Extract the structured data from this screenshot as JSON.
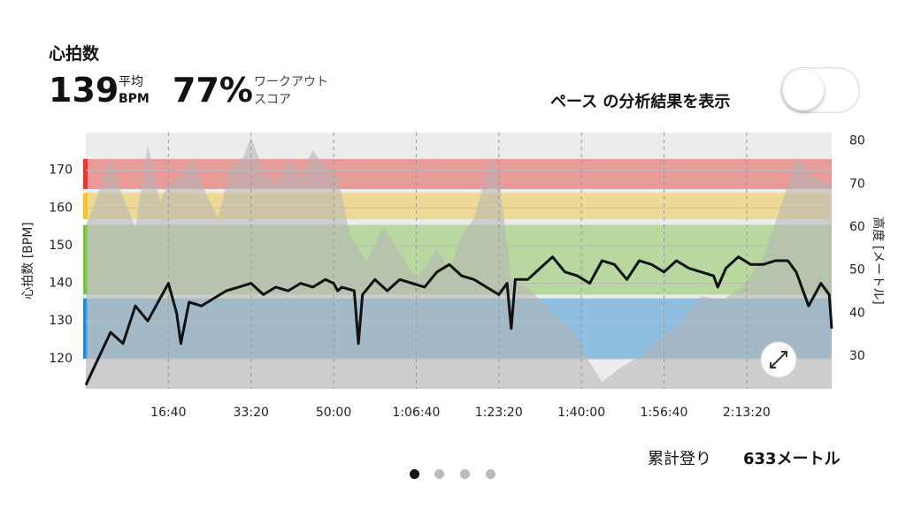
{
  "header": {
    "title": "心拍数",
    "avg_value": "139",
    "avg_label": "平均",
    "avg_unit": "BPM",
    "score_value": "77%",
    "score_label_1": "ワークアウト",
    "score_label_2": "スコア",
    "toggle_label": "ペース の分析結果を表示"
  },
  "chart_data": {
    "type": "line",
    "ylabel": "心拍数 [BPM]",
    "y2label": "高度 [メートル]",
    "xlim": [
      0,
      9030
    ],
    "ylim": [
      112,
      180
    ],
    "y2lim": [
      22.4,
      82
    ],
    "xticks": [
      {
        "value": 1000,
        "label": "16:40"
      },
      {
        "value": 2000,
        "label": "33:20"
      },
      {
        "value": 3000,
        "label": "50:00"
      },
      {
        "value": 4000,
        "label": "1:06:40"
      },
      {
        "value": 5000,
        "label": "1:23:20"
      },
      {
        "value": 6000,
        "label": "1:40:00"
      },
      {
        "value": 7000,
        "label": "1:56:40"
      },
      {
        "value": 8000,
        "label": "2:13:20"
      }
    ],
    "yticks": [
      120,
      130,
      140,
      150,
      160,
      170
    ],
    "y2ticks": [
      30,
      40,
      50,
      60,
      70,
      80
    ],
    "grid": true,
    "zones": [
      {
        "from": 165,
        "to": 173,
        "color": "#e53935"
      },
      {
        "from": 157,
        "to": 164,
        "color": "#f4c430"
      },
      {
        "from": 137,
        "to": 155.5,
        "color": "#7cc242"
      },
      {
        "from": 120,
        "to": 136,
        "color": "#1e88d2"
      }
    ],
    "series": [
      {
        "color": "#111111",
        "axis": "y",
        "x": [
          0,
          150,
          300,
          450,
          600,
          750,
          900,
          1000,
          1100,
          1150,
          1250,
          1400,
          1550,
          1700,
          1850,
          2000,
          2150,
          2300,
          2450,
          2600,
          2750,
          2900,
          3000,
          3050,
          3100,
          3250,
          3300,
          3350,
          3500,
          3650,
          3800,
          3950,
          4100,
          4250,
          4400,
          4550,
          4700,
          4850,
          5000,
          5100,
          5150,
          5200,
          5350,
          5500,
          5650,
          5800,
          5950,
          6100,
          6250,
          6400,
          6550,
          6700,
          6850,
          7000,
          7150,
          7300,
          7450,
          7600,
          7650,
          7750,
          7900,
          8050,
          8200,
          8350,
          8500,
          8600,
          8750,
          8900,
          9000,
          9030
        ],
        "values": [
          113,
          120,
          127,
          124,
          134,
          130,
          136,
          140,
          132,
          124,
          135,
          134,
          136,
          138,
          139,
          140,
          137,
          139,
          138,
          140,
          139,
          141,
          140,
          138,
          139,
          138,
          124,
          137,
          141,
          138,
          141,
          140,
          139,
          143,
          145,
          142,
          141,
          139,
          137,
          140,
          128,
          141,
          141,
          144,
          147,
          143,
          142,
          140,
          146,
          145,
          141,
          146,
          145,
          143,
          146,
          144,
          143,
          142,
          139,
          144,
          147,
          145,
          145,
          146,
          146,
          143,
          134,
          140,
          137,
          128
        ]
      },
      {
        "color": "#b5b5b5",
        "axis": "y2",
        "x": [
          0,
          300,
          450,
          600,
          750,
          900,
          1000,
          1150,
          1300,
          1450,
          1600,
          1750,
          1900,
          2000,
          2150,
          2300,
          2450,
          2600,
          2750,
          2900,
          3050,
          3200,
          3400,
          3600,
          3800,
          4000,
          4250,
          4400,
          4550,
          4700,
          4900,
          5000,
          5150,
          5400,
          5650,
          5900,
          6050,
          6250,
          6450,
          6700,
          6950,
          7200,
          7450,
          7700,
          7950,
          8200,
          8400,
          8600,
          8800,
          9030
        ],
        "values": [
          60,
          76,
          67,
          60,
          79,
          66,
          70,
          72,
          76,
          68,
          62,
          74,
          76,
          81,
          73,
          70,
          76,
          72,
          78,
          74,
          72,
          58,
          52,
          60,
          54,
          48,
          55,
          50,
          58,
          62,
          76,
          72,
          48,
          45,
          40,
          36,
          30,
          24,
          27,
          30,
          34,
          38,
          44,
          43,
          46,
          53,
          64,
          76,
          72,
          70
        ]
      }
    ]
  },
  "footer": {
    "climb_label": "累計登り",
    "climb_value": "633メートル"
  }
}
